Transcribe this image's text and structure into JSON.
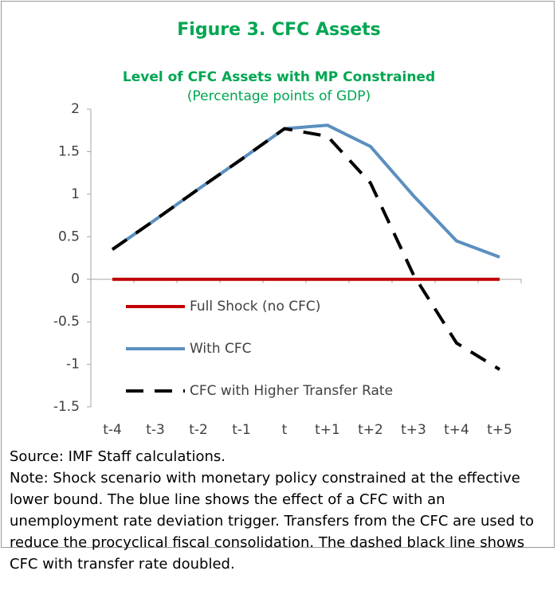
{
  "chart_data": {
    "type": "line",
    "title": "Figure 3. CFC Assets",
    "subtitle": "Level of CFC Assets with MP Constrained",
    "unit": "(Percentage points of GDP)",
    "categories": [
      "t-4",
      "t-3",
      "t-2",
      "t-1",
      "t",
      "t+1",
      "t+2",
      "t+3",
      "t+4",
      "t+5"
    ],
    "series": [
      {
        "name": "Full Shock (no CFC)",
        "color": "#c00000",
        "dashed": false,
        "values": [
          0,
          0,
          0,
          0,
          0,
          0,
          0,
          0,
          0,
          0
        ]
      },
      {
        "name": "With CFC",
        "color": "#5b8fbf",
        "dashed": false,
        "values": [
          0.35,
          0.7,
          1.06,
          1.41,
          1.77,
          1.81,
          1.56,
          0.98,
          0.45,
          0.26
        ]
      },
      {
        "name": "CFC with Higher Transfer Rate",
        "color": "#000000",
        "dashed": true,
        "values": [
          0.35,
          0.7,
          1.06,
          1.41,
          1.77,
          1.68,
          1.13,
          0.05,
          -0.75,
          -1.06
        ]
      }
    ],
    "ylim": [
      -1.5,
      2
    ],
    "yticks": [
      -1.5,
      -1,
      -0.5,
      0,
      0.5,
      1,
      1.5,
      2
    ],
    "grid": false,
    "legend": "lower left"
  },
  "source": "Source: IMF Staff calculations.",
  "note": "Note: Shock scenario with monetary policy constrained at the effective lower bound. The blue line shows the effect of a CFC with an unemployment rate deviation trigger. Transfers from the CFC are used to reduce the procyclical fiscal consolidation. The dashed black line shows CFC with transfer rate doubled."
}
